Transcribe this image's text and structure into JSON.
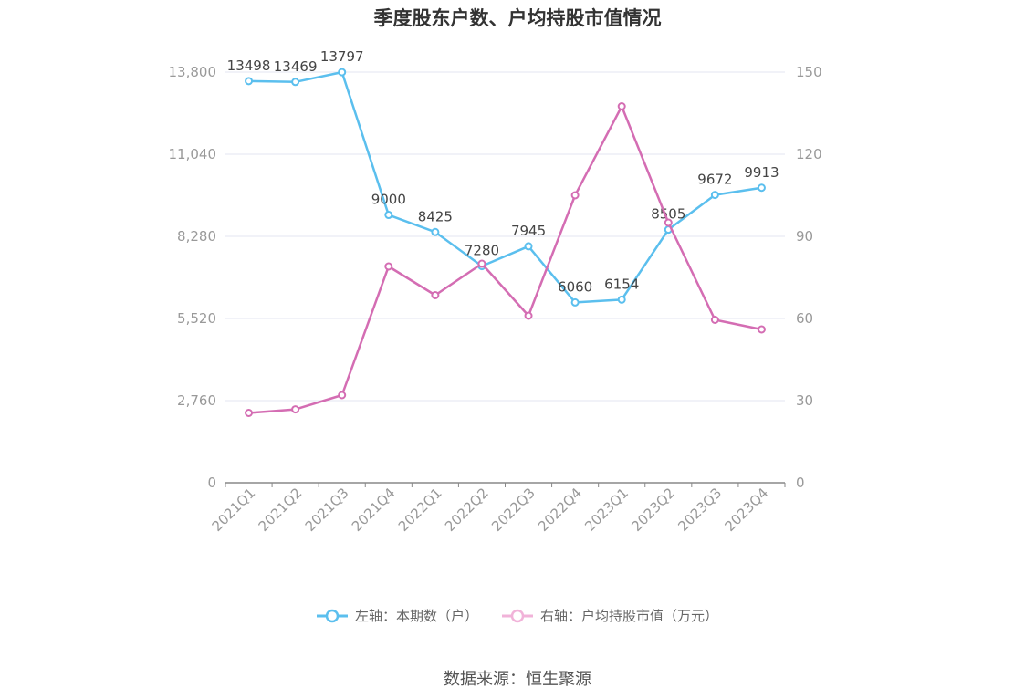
{
  "chart_data": {
    "type": "line",
    "title": "季度股东户数、户均持股市值情况",
    "categories": [
      "2021Q1",
      "2021Q2",
      "2021Q3",
      "2021Q4",
      "2022Q1",
      "2022Q2",
      "2022Q3",
      "2022Q4",
      "2023Q1",
      "2023Q2",
      "2023Q3",
      "2023Q4"
    ],
    "y_left": {
      "ylim": [
        0,
        13800
      ],
      "ticks": [
        "0",
        "2,760",
        "5,520",
        "8,280",
        "11,040",
        "13,800"
      ]
    },
    "y_right": {
      "ylim": [
        0,
        150
      ],
      "ticks": [
        "0",
        "30",
        "60",
        "90",
        "120",
        "150"
      ]
    },
    "grid": true,
    "legend_position": "bottom",
    "series": [
      {
        "name": "左轴：本期数（户）",
        "axis": "left",
        "color": "#5bbfee",
        "values": [
          13498,
          13469,
          13797,
          9000,
          8425,
          7280,
          7945,
          6060,
          6154,
          8505,
          9672,
          9913
        ],
        "labels": [
          "13498",
          "13469",
          "13797",
          "9000",
          "8425",
          "7280",
          "7945",
          "6060",
          "6154",
          "8505",
          "9672",
          "9913"
        ]
      },
      {
        "name": "右轴：户均持股市值（万元）",
        "axis": "right",
        "color": "#d46db3",
        "values": [
          25.5,
          26.8,
          32.0,
          79.0,
          68.5,
          80.0,
          61.0,
          105.0,
          137.5,
          95.0,
          59.5,
          56.0
        ]
      }
    ]
  },
  "source": "数据来源：恒生聚源"
}
